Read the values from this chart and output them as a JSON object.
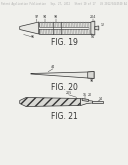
{
  "bg_color": "#f0f0ec",
  "header_text": "Patent Application Publication   Sep. 27, 2012   Sheet 10 of 17   US 2012/0244540 A1",
  "header_fontsize": 1.8,
  "fig19_label": "FIG. 19",
  "fig20_label": "FIG. 20",
  "fig21_label": "FIG. 21",
  "label_fontsize": 5.5,
  "line_color": "#333333",
  "ref_fontsize": 2.3
}
